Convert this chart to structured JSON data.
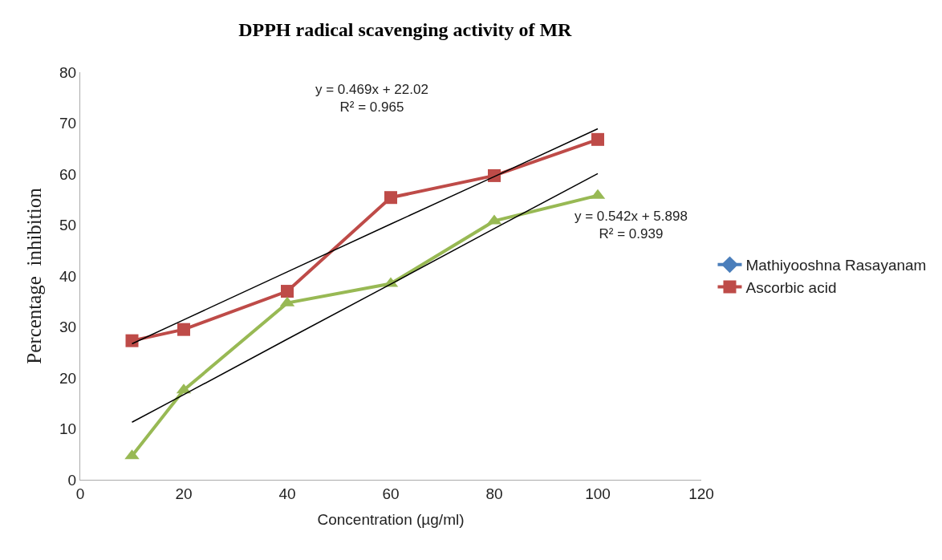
{
  "chart_data": {
    "type": "line",
    "title": "DPPH radical scavenging activity of MR",
    "xlabel": "Concentration (µg/ml)",
    "ylabel": "Percentage  inhibition",
    "annotations": [
      "y = 0.469x + 22.02\nR² = 0.965",
      "y = 0.542x + 5.898\nR² = 0.939"
    ],
    "x": [
      10,
      20,
      40,
      60,
      80,
      100
    ],
    "series": [
      {
        "name": "Mathiyooshna Rasayanam",
        "color": "#4a7ebb",
        "marker": "diamond",
        "values": [
          null,
          null,
          null,
          null,
          null,
          null
        ]
      },
      {
        "name": "Ascorbic acid",
        "color": "#be4b48",
        "marker": "square",
        "values": [
          27.3,
          29.5,
          37,
          55.4,
          59.7,
          66.8
        ]
      },
      {
        "color": "#98b954",
        "marker": "triangle",
        "values": [
          4.7,
          17.6,
          34.7,
          38.5,
          50.8,
          55.8
        ]
      },
      {
        "color": "#000000",
        "marker": "none",
        "values": [
          26.7,
          31.4,
          40.8,
          50.2,
          59.5,
          68.9
        ]
      },
      {
        "color": "#000000",
        "marker": "none",
        "values": [
          11.3,
          16.7,
          27.6,
          38.4,
          49.3,
          60.1
        ]
      }
    ],
    "xlim": [
      0,
      120
    ],
    "xticks": [
      0,
      20,
      40,
      60,
      80,
      100,
      120
    ],
    "ylim": [
      0,
      80
    ],
    "yticks": [
      0,
      10,
      20,
      30,
      40,
      50,
      60,
      70,
      80
    ],
    "grid": false,
    "legend": "right"
  }
}
